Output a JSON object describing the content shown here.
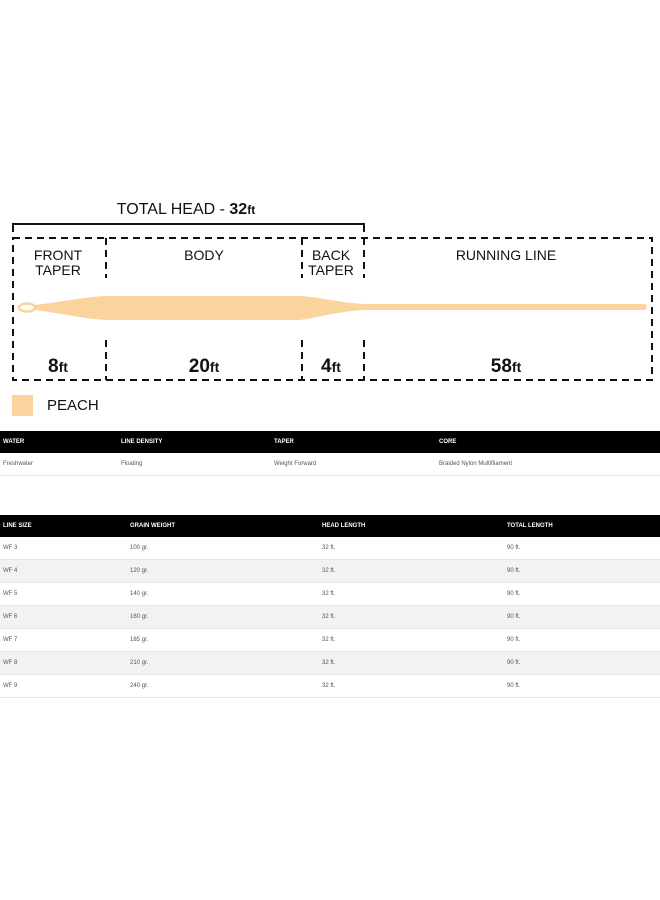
{
  "diagram": {
    "total_head": {
      "label": "TOTAL HEAD -",
      "value": "32",
      "unit": "ft"
    },
    "sections": [
      {
        "label": [
          "FRONT",
          "TAPER"
        ],
        "value": "8",
        "unit": "ft"
      },
      {
        "label": [
          "BODY"
        ],
        "value": "20",
        "unit": "ft"
      },
      {
        "label": [
          "BACK",
          "TAPER"
        ],
        "value": "4",
        "unit": "ft"
      },
      {
        "label": [
          "RUNNING LINE"
        ],
        "value": "58",
        "unit": "ft"
      }
    ]
  },
  "legend": {
    "color": "#fbd39c",
    "name": "PEACH"
  },
  "specs": {
    "headers": [
      "WATER",
      "LINE DENSITY",
      "TAPER",
      "CORE"
    ],
    "rows": [
      [
        "Freshwater",
        "Floating",
        "Weight Forward",
        "Braided Nylon Multifilament"
      ]
    ]
  },
  "sizes": {
    "headers": [
      "LINE SIZE",
      "GRAIN WEIGHT",
      "HEAD LENGTH",
      "TOTAL LENGTH"
    ],
    "rows": [
      [
        "WF 3",
        "100 gr.",
        "32 ft.",
        "90 ft."
      ],
      [
        "WF 4",
        "120 gr.",
        "32 ft.",
        "90 ft."
      ],
      [
        "WF 5",
        "140 gr.",
        "32 ft.",
        "90 ft."
      ],
      [
        "WF 6",
        "160 gr.",
        "32 ft.",
        "90 ft."
      ],
      [
        "WF 7",
        "185 gr.",
        "32 ft.",
        "90 ft."
      ],
      [
        "WF 8",
        "210 gr.",
        "32 ft.",
        "90 ft."
      ],
      [
        "WF 9",
        "240 gr.",
        "32 ft.",
        "90 ft."
      ]
    ]
  }
}
